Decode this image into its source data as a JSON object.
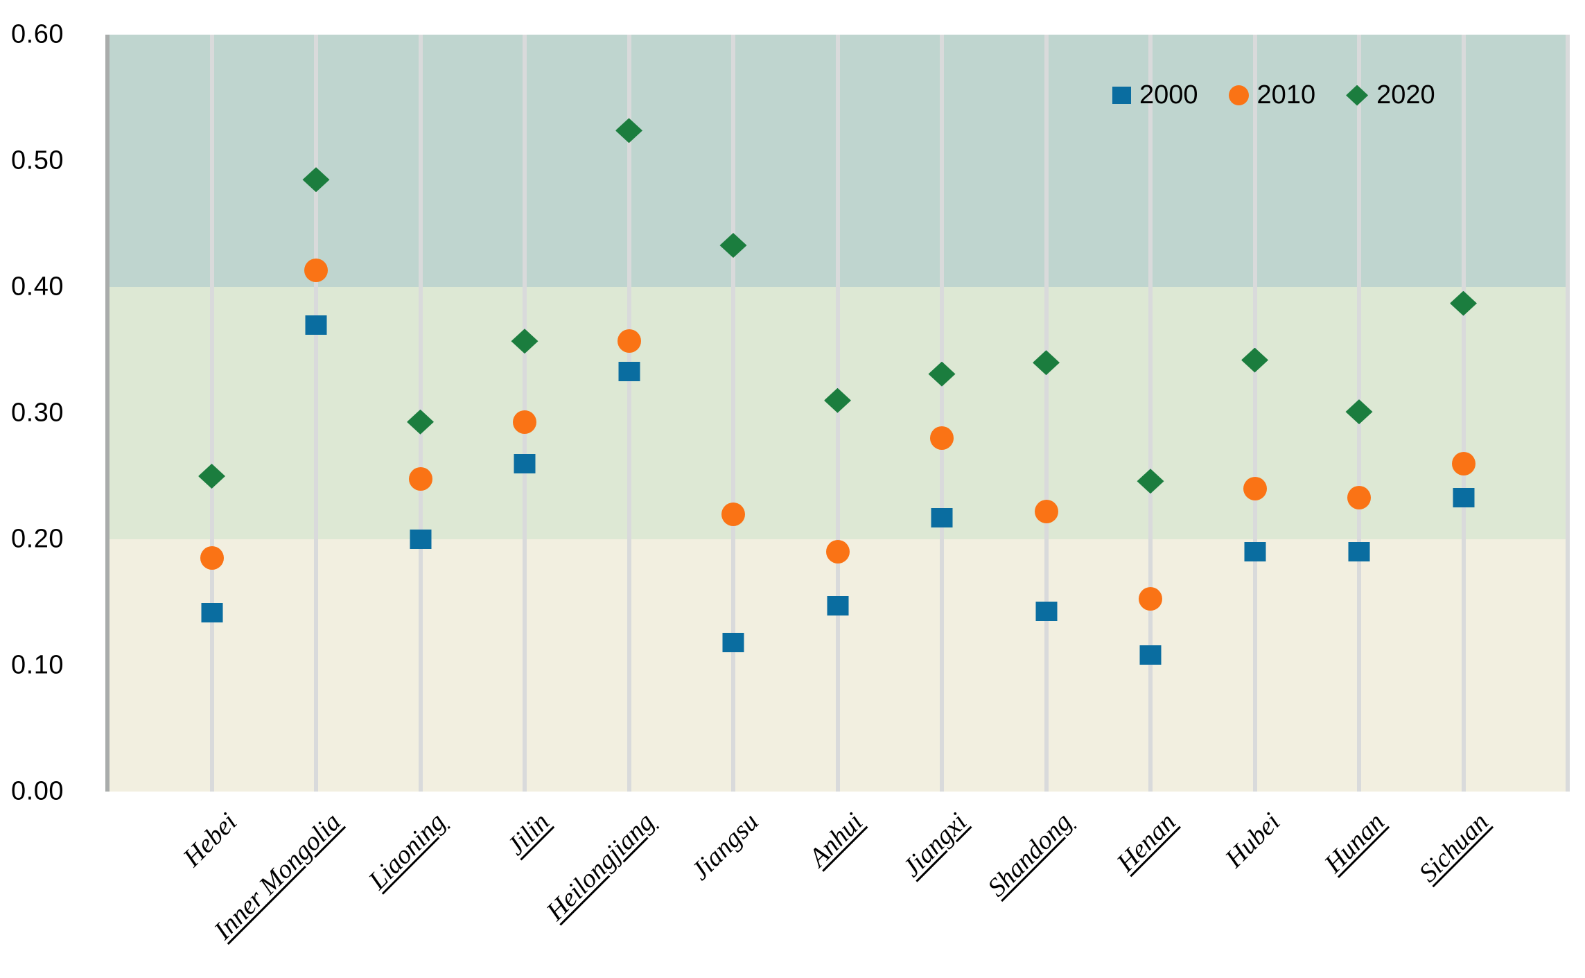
{
  "chart_data": {
    "type": "scatter",
    "grid": "vertical-only",
    "legend_position": "top-right-inside",
    "categories": [
      "Hebei",
      "Inner Mongolia",
      "Liaoning",
      "Jilin",
      "Heilongjiang",
      "Jiangsu",
      "Anhui",
      "Jiangxi",
      "Shandong",
      "Henan",
      "Hubei",
      "Hunan",
      "Sichuan"
    ],
    "category_underline": [
      false,
      true,
      true,
      true,
      true,
      false,
      true,
      true,
      true,
      true,
      false,
      true,
      true
    ],
    "series": [
      {
        "name": "2000",
        "marker": "square",
        "color": "#0a6da0",
        "values": [
          0.142,
          0.37,
          0.2,
          0.26,
          0.333,
          0.118,
          0.147,
          0.217,
          0.143,
          0.108,
          0.19,
          0.19,
          0.233
        ]
      },
      {
        "name": "2010",
        "marker": "circle",
        "color": "#fa7315",
        "values": [
          0.185,
          0.413,
          0.248,
          0.293,
          0.357,
          0.22,
          0.19,
          0.28,
          0.222,
          0.153,
          0.24,
          0.233,
          0.26
        ]
      },
      {
        "name": "2020",
        "marker": "diamond",
        "color": "#1b7d3e",
        "values": [
          0.25,
          0.485,
          0.293,
          0.357,
          0.524,
          0.433,
          0.31,
          0.331,
          0.34,
          0.246,
          0.342,
          0.301,
          0.387
        ]
      }
    ],
    "y_axis": {
      "min": 0.0,
      "max": 0.6,
      "step": 0.1,
      "tick_labels": [
        "0.00",
        "0.10",
        "0.20",
        "0.30",
        "0.40",
        "0.50",
        "0.60"
      ]
    },
    "bands": [
      {
        "from": 0.0,
        "to": 0.2,
        "color": "#f2efe0"
      },
      {
        "from": 0.2,
        "to": 0.4,
        "color": "#dde8d4"
      },
      {
        "from": 0.4,
        "to": 0.6,
        "color": "#bfd5cf"
      }
    ],
    "gridline_color": "#d9dadb",
    "axis_line_color": "#a9acab"
  }
}
